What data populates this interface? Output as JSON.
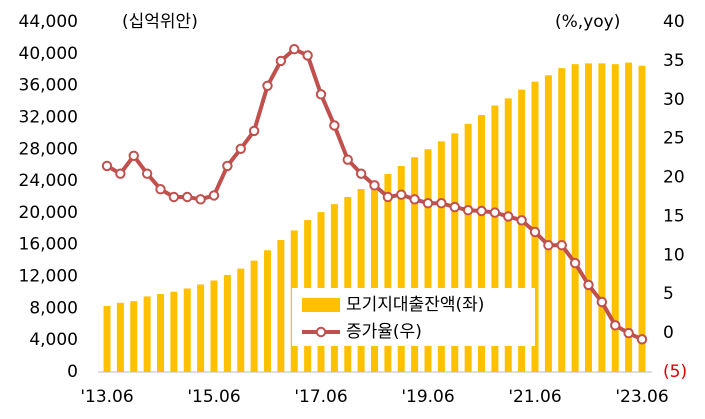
{
  "chart_data": {
    "type": "bar_line",
    "y_axis_label": "(십억위안)",
    "y2_axis_label": "(%,yoy)",
    "categories": [
      "'13.06",
      null,
      null,
      null,
      null,
      null,
      null,
      null,
      "'15.06",
      null,
      null,
      null,
      null,
      null,
      null,
      null,
      "'17.06",
      null,
      null,
      null,
      null,
      null,
      null,
      null,
      "'19.06",
      null,
      null,
      null,
      null,
      null,
      null,
      null,
      "'21.06",
      null,
      null,
      null,
      null,
      null,
      null,
      null,
      "'23.06"
    ],
    "series": [
      {
        "name": "모기지대출잔액(좌)",
        "type": "bar",
        "color": "#ffc000",
        "values": [
          8300,
          8700,
          8900,
          9500,
          9800,
          10100,
          10500,
          11000,
          11500,
          12200,
          13000,
          14000,
          15300,
          16600,
          17800,
          19100,
          20100,
          21100,
          22000,
          23000,
          24000,
          24900,
          25900,
          27000,
          28000,
          29000,
          30000,
          31200,
          32300,
          33500,
          34400,
          35500,
          36500,
          37300,
          38200,
          38700,
          38800,
          38800,
          38700,
          38900,
          38500
        ]
      },
      {
        "name": "증가율(우)",
        "type": "line",
        "axis": "y2",
        "color": "#c0504d",
        "values": [
          21.5,
          20.5,
          22.8,
          20.5,
          18.5,
          17.5,
          17.5,
          17.2,
          17.7,
          21.5,
          23.7,
          26,
          31.8,
          35,
          36.5,
          35.7,
          30.7,
          26.7,
          22.3,
          20.5,
          19,
          17.5,
          17.8,
          17.2,
          16.7,
          16.7,
          16.2,
          15.8,
          15.7,
          15.5,
          15,
          14.5,
          13,
          11.3,
          11.3,
          9,
          6.2,
          4,
          1,
          0,
          -0.8
        ]
      }
    ],
    "ylim": [
      0,
      44000
    ],
    "yticks": [
      0,
      {
        "value": 4000,
        "label": "4,000"
      },
      {
        "value": 8000,
        "label": "8,000"
      },
      {
        "value": 12000,
        "label": "12,000"
      },
      {
        "value": 16000,
        "label": "16,000"
      },
      {
        "value": 20000,
        "label": "20,000"
      },
      {
        "value": 24000,
        "label": "24,000"
      },
      {
        "value": 28000,
        "label": "28,000"
      },
      {
        "value": 32000,
        "label": "32,000"
      },
      {
        "value": 36000,
        "label": "36,000"
      },
      {
        "value": 40000,
        "label": "40,000"
      },
      {
        "value": 44000,
        "label": "44,000"
      }
    ],
    "y2lim": [
      -5,
      40
    ],
    "y2ticks": [
      {
        "value": -5,
        "label": "(5)"
      },
      0,
      5,
      10,
      15,
      20,
      25,
      30,
      35,
      40
    ],
    "y2_negative_tick_color": "#e00000",
    "grid": false
  }
}
